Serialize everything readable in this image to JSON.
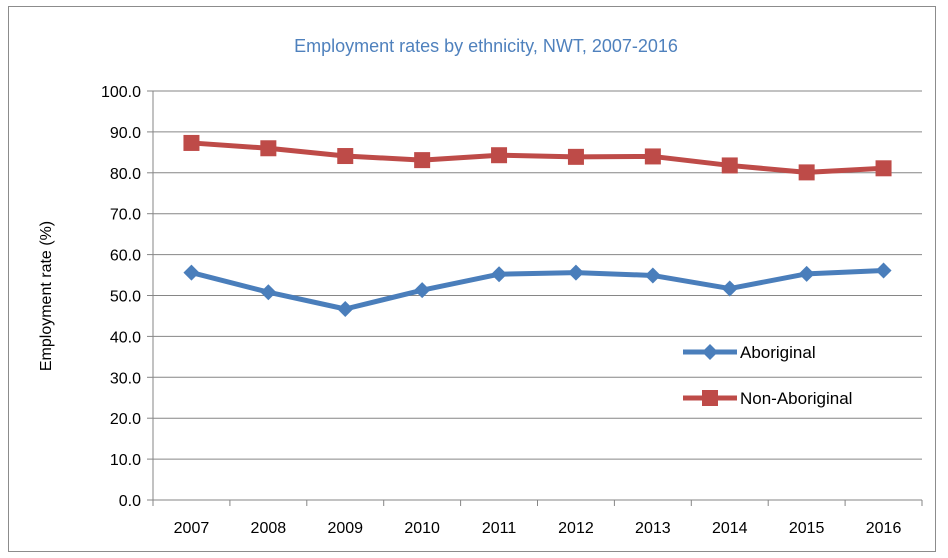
{
  "chart_data": {
    "type": "line",
    "title": "Employment rates by ethnicity, NWT, 2007-2016",
    "xlabel": "",
    "ylabel": "Employment rate (%)",
    "categories": [
      "2007",
      "2008",
      "2009",
      "2010",
      "2011",
      "2012",
      "2013",
      "2014",
      "2015",
      "2016"
    ],
    "ylim": [
      0,
      100
    ],
    "yticks": [
      "0.0",
      "10.0",
      "20.0",
      "30.0",
      "40.0",
      "50.0",
      "60.0",
      "70.0",
      "80.0",
      "90.0",
      "100.0"
    ],
    "grid": true,
    "legend": "right",
    "series": [
      {
        "name": "Aboriginal",
        "color": "#4a7ebb",
        "marker": "diamond",
        "values": [
          55.6,
          50.8,
          46.7,
          51.3,
          55.2,
          55.6,
          54.9,
          51.7,
          55.3,
          56.1
        ]
      },
      {
        "name": "Non-Aboriginal",
        "color": "#be4b48",
        "marker": "square",
        "values": [
          87.3,
          86.0,
          84.1,
          83.1,
          84.3,
          83.9,
          84.0,
          81.8,
          80.1,
          81.1
        ]
      }
    ],
    "title_color": "#4f81bd"
  }
}
